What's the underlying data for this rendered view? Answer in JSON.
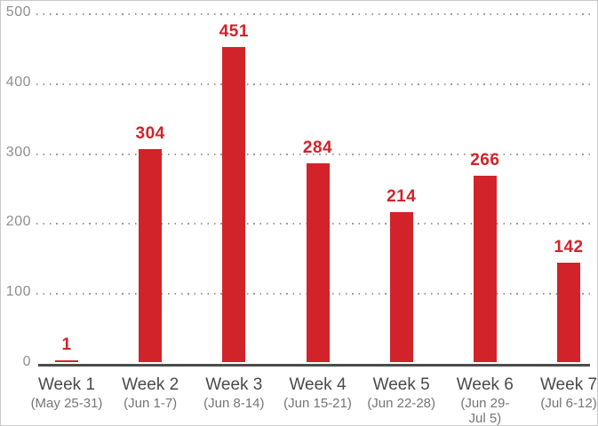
{
  "chart_data": {
    "type": "bar",
    "categories": [
      "Week 1",
      "Week 2",
      "Week 3",
      "Week 4",
      "Week 5",
      "Week 6",
      "Week 7"
    ],
    "category_sublabels": [
      "(May 25-31)",
      "(Jun 1-7)",
      "(Jun 8-14)",
      "(Jun 15-21)",
      "(Jun 22-28)",
      "(Jun 29-\nJul 5)",
      "(Jul 6-12)"
    ],
    "values": [
      1,
      304,
      451,
      284,
      214,
      266,
      142
    ],
    "title": "",
    "xlabel": "",
    "ylabel": "",
    "ylim": [
      0,
      500
    ],
    "y_ticks": [
      0,
      100,
      200,
      300,
      400,
      500
    ],
    "grid": "horizontal-dotted",
    "legend": "none",
    "colors": {
      "bar": "#d2232a",
      "value_label": "#d2232a",
      "axis": "#4c4c4c",
      "y_tick_label": "#8e8e8e",
      "category_label": "#4a4a4a",
      "category_sublabel": "#757575",
      "frame_border": "#c9c9c9",
      "background": "#ffffff"
    }
  }
}
